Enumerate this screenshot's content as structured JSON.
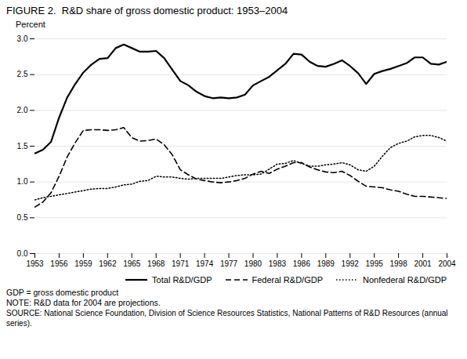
{
  "chart_data": {
    "type": "line",
    "title": "FIGURE 2.  R&D share of gross domestic product: 1953–2004",
    "ylabel": "Percent",
    "footnotes": [
      "GDP = gross domestic product",
      "NOTE: R&D data for 2004 are projections.",
      "SOURCE: National Science Foundation, Division of Science Resources Statistics, National Patterns of R&D Resources (annual series)."
    ],
    "x": [
      1953,
      1954,
      1955,
      1956,
      1957,
      1958,
      1959,
      1960,
      1961,
      1962,
      1963,
      1964,
      1965,
      1966,
      1967,
      1968,
      1969,
      1970,
      1971,
      1972,
      1973,
      1974,
      1975,
      1976,
      1977,
      1978,
      1979,
      1980,
      1981,
      1982,
      1983,
      1984,
      1985,
      1986,
      1987,
      1988,
      1989,
      1990,
      1991,
      1992,
      1993,
      1994,
      1995,
      1996,
      1997,
      1998,
      1999,
      2000,
      2001,
      2002,
      2003,
      2004
    ],
    "series": [
      {
        "name": "Total R&D/GDP",
        "color": "#000000",
        "line_style": "solid",
        "values": [
          1.4,
          1.45,
          1.56,
          1.9,
          2.18,
          2.37,
          2.53,
          2.64,
          2.72,
          2.73,
          2.87,
          2.92,
          2.87,
          2.82,
          2.82,
          2.83,
          2.73,
          2.57,
          2.41,
          2.35,
          2.26,
          2.2,
          2.17,
          2.18,
          2.17,
          2.18,
          2.22,
          2.35,
          2.41,
          2.47,
          2.56,
          2.65,
          2.79,
          2.78,
          2.68,
          2.62,
          2.61,
          2.65,
          2.7,
          2.62,
          2.52,
          2.37,
          2.51,
          2.55,
          2.58,
          2.62,
          2.66,
          2.74,
          2.74,
          2.65,
          2.64,
          2.68
        ]
      },
      {
        "name": "Federal R&D/GDP",
        "color": "#000000",
        "line_style": "dashed",
        "values": [
          0.65,
          0.72,
          0.85,
          1.08,
          1.35,
          1.55,
          1.72,
          1.73,
          1.73,
          1.72,
          1.73,
          1.76,
          1.62,
          1.57,
          1.58,
          1.6,
          1.52,
          1.38,
          1.17,
          1.1,
          1.04,
          1.02,
          1.0,
          0.99,
          1.0,
          1.02,
          1.05,
          1.11,
          1.15,
          1.12,
          1.18,
          1.22,
          1.27,
          1.27,
          1.21,
          1.17,
          1.14,
          1.13,
          1.15,
          1.09,
          1.01,
          0.94,
          0.93,
          0.92,
          0.89,
          0.87,
          0.83,
          0.8,
          0.8,
          0.79,
          0.78,
          0.77
        ]
      },
      {
        "name": "Nonfederal R&D/GDP",
        "color": "#000000",
        "line_style": "dotted",
        "values": [
          0.75,
          0.78,
          0.8,
          0.82,
          0.84,
          0.86,
          0.88,
          0.9,
          0.91,
          0.91,
          0.93,
          0.96,
          0.97,
          1.01,
          1.02,
          1.08,
          1.07,
          1.07,
          1.05,
          1.04,
          1.05,
          1.05,
          1.05,
          1.05,
          1.07,
          1.09,
          1.1,
          1.1,
          1.11,
          1.18,
          1.25,
          1.26,
          1.3,
          1.26,
          1.22,
          1.22,
          1.24,
          1.25,
          1.27,
          1.24,
          1.17,
          1.15,
          1.22,
          1.36,
          1.48,
          1.54,
          1.57,
          1.63,
          1.65,
          1.65,
          1.62,
          1.57
        ]
      }
    ],
    "xlim": [
      1953,
      2004
    ],
    "xticks": [
      1953,
      1956,
      1959,
      1962,
      1965,
      1968,
      1971,
      1974,
      1977,
      1980,
      1983,
      1986,
      1989,
      1992,
      1995,
      1998,
      2001,
      2004
    ],
    "ylim": [
      0.0,
      3.0
    ],
    "yticks": [
      {
        "value": 0,
        "label": "0.0"
      },
      0.5,
      {
        "value": 1,
        "label": "1.0"
      },
      1.5,
      {
        "value": 2,
        "label": "2.0"
      },
      2.5,
      {
        "value": 3,
        "label": "3.0"
      }
    ],
    "grid": true,
    "legend": "lower right"
  }
}
